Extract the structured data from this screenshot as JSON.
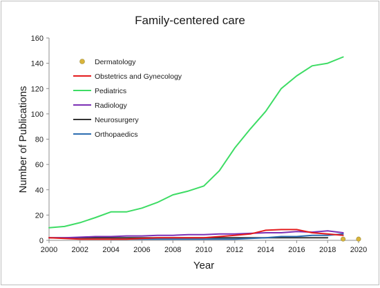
{
  "chart_data": {
    "type": "line",
    "title": "Family-centered care",
    "xlabel": "Year",
    "ylabel": "Number of Publications",
    "xlim": [
      2000,
      2020
    ],
    "ylim": [
      0,
      160
    ],
    "x_ticks": [
      "2000",
      "2002",
      "2004",
      "2006",
      "2008",
      "2010",
      "2012",
      "2014",
      "2016",
      "2018",
      "2020"
    ],
    "y_ticks": [
      "0",
      "20",
      "40",
      "60",
      "80",
      "100",
      "120",
      "140",
      "160"
    ],
    "legend_position": "top-left",
    "series": [
      {
        "name": "Dermatology",
        "color": "#d9b43a",
        "marker": "circle",
        "line": false,
        "x": [
          2019,
          2020
        ],
        "y": [
          1,
          1
        ]
      },
      {
        "name": "Obstetrics and Gynecology",
        "color": "#e41a1c",
        "x": [
          2000,
          2001,
          2002,
          2003,
          2004,
          2005,
          2006,
          2007,
          2008,
          2009,
          2010,
          2011,
          2012,
          2013,
          2014,
          2015,
          2016,
          2017,
          2018,
          2019
        ],
        "y": [
          2,
          1.5,
          1,
          1,
          1,
          1,
          1.5,
          2,
          2,
          2,
          2,
          3,
          4,
          5,
          8,
          8.5,
          8.5,
          6,
          5,
          4
        ]
      },
      {
        "name": "Pediatrics",
        "color": "#3ddc64",
        "x": [
          2000,
          2001,
          2002,
          2003,
          2004,
          2005,
          2006,
          2007,
          2008,
          2009,
          2010,
          2011,
          2012,
          2013,
          2014,
          2015,
          2016,
          2017,
          2018,
          2019
        ],
        "y": [
          10,
          11,
          14,
          18,
          22.5,
          22.5,
          25.5,
          30,
          36,
          39,
          43,
          55,
          73,
          88,
          102,
          120,
          130,
          138,
          140,
          145
        ]
      },
      {
        "name": "Radiology",
        "color": "#7b2fb5",
        "x": [
          2000,
          2001,
          2002,
          2003,
          2004,
          2005,
          2006,
          2007,
          2008,
          2009,
          2010,
          2011,
          2012,
          2013,
          2014,
          2015,
          2016,
          2017,
          2018,
          2019
        ],
        "y": [
          2,
          2,
          2.5,
          3,
          3,
          3.5,
          3.5,
          4,
          4,
          4.5,
          4.5,
          5,
          5,
          5.5,
          6,
          6,
          7,
          6.5,
          7.5,
          6
        ]
      },
      {
        "name": "Neurosurgery",
        "color": "#333333",
        "x": [
          2000,
          2001,
          2002,
          2003,
          2004,
          2005,
          2006,
          2007,
          2008,
          2009,
          2010,
          2011,
          2012,
          2013,
          2014,
          2015,
          2016,
          2017,
          2018
        ],
        "y": [
          2,
          2,
          2,
          2,
          2,
          2,
          2,
          2,
          2,
          2,
          2,
          2,
          2,
          2,
          2,
          2,
          2,
          2,
          2
        ]
      },
      {
        "name": "Orthopaedics",
        "color": "#2b6cb0",
        "x": [
          2004,
          2005,
          2006,
          2007,
          2008,
          2009,
          2010,
          2011,
          2012,
          2013,
          2014,
          2015,
          2016,
          2017,
          2018,
          2019
        ],
        "y": [
          1,
          1,
          1,
          1,
          1,
          1,
          1,
          1,
          1,
          1.5,
          2,
          3,
          3,
          4,
          4,
          5
        ]
      }
    ]
  }
}
